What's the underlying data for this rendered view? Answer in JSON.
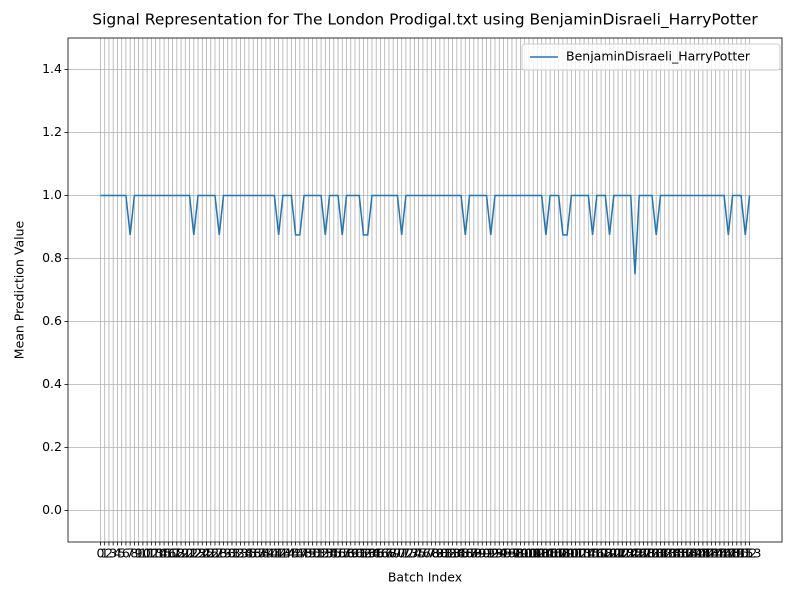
{
  "chart_data": {
    "type": "line",
    "title": "Signal Representation for The London Prodigal.txt using BenjaminDisraeli_HarryPotter",
    "x_label": "Batch Index",
    "y_label": "Mean Prediction Value",
    "x": [
      0,
      1,
      2,
      3,
      4,
      5,
      6,
      7,
      8,
      9,
      10,
      11,
      12,
      13,
      14,
      15,
      16,
      17,
      18,
      19,
      20,
      21,
      22,
      23,
      24,
      25,
      26,
      27,
      28,
      29,
      30,
      31,
      32,
      33,
      34,
      35,
      36,
      37,
      38,
      39,
      40,
      41,
      42,
      43,
      44,
      45,
      46,
      47,
      48,
      49,
      50,
      51,
      52,
      53,
      54,
      55,
      56,
      57,
      58,
      59,
      60,
      61,
      62,
      63,
      64,
      65,
      66,
      67,
      68,
      69,
      70,
      71,
      72,
      73,
      74,
      75,
      76,
      77,
      78,
      79,
      80,
      81,
      82,
      83,
      84,
      85,
      86,
      87,
      88,
      89,
      90,
      91,
      92,
      93,
      94,
      95,
      96,
      97,
      98,
      99,
      100,
      101,
      102,
      103,
      104,
      105,
      106,
      107,
      108,
      109,
      110,
      111,
      112,
      113,
      114,
      115,
      116,
      117,
      118,
      119,
      120,
      121,
      122,
      123,
      124,
      125,
      126,
      127,
      128,
      129,
      130,
      131,
      132,
      133,
      134,
      135,
      136,
      137,
      138,
      139,
      140,
      141,
      142,
      143,
      144,
      145,
      146,
      147,
      148,
      149,
      150,
      151,
      152,
      153
    ],
    "series": [
      {
        "name": "BenjaminDisraeli_HarryPotter",
        "color": "#1f77b4",
        "values": [
          1,
          1,
          1,
          1,
          1,
          1,
          1,
          0.875,
          1,
          1,
          1,
          1,
          1,
          1,
          1,
          1,
          1,
          1,
          1,
          1,
          1,
          1,
          0.875,
          1,
          1,
          1,
          1,
          1,
          0.875,
          1,
          1,
          1,
          1,
          1,
          1,
          1,
          1,
          1,
          1,
          1,
          1,
          1,
          0.875,
          1,
          1,
          1,
          0.875,
          0.875,
          1,
          1,
          1,
          1,
          1,
          0.875,
          1,
          1,
          1,
          0.875,
          1,
          1,
          1,
          1,
          0.875,
          0.875,
          1,
          1,
          1,
          1,
          1,
          1,
          1,
          0.875,
          1,
          1,
          1,
          1,
          1,
          1,
          1,
          1,
          1,
          1,
          1,
          1,
          1,
          1,
          0.875,
          1,
          1,
          1,
          1,
          1,
          0.875,
          1,
          1,
          1,
          1,
          1,
          1,
          1,
          1,
          1,
          1,
          1,
          1,
          0.875,
          1,
          1,
          1,
          0.875,
          0.875,
          1,
          1,
          1,
          1,
          1,
          0.875,
          1,
          1,
          1,
          0.875,
          1,
          1,
          1,
          1,
          1,
          0.75,
          1,
          1,
          1,
          1,
          0.875,
          1,
          1,
          1,
          1,
          1,
          1,
          1,
          1,
          1,
          1,
          1,
          1,
          1,
          1,
          1,
          1,
          0.875,
          1,
          1,
          1,
          0.875,
          1
        ]
      }
    ],
    "xlim": [
      -7.65,
      160.65
    ],
    "xticks": [
      0,
      1,
      2,
      3,
      4,
      5,
      6,
      7,
      8,
      9,
      10,
      11,
      12,
      13,
      14,
      15,
      16,
      17,
      18,
      19,
      20,
      21,
      22,
      23,
      24,
      25,
      26,
      27,
      28,
      29,
      30,
      31,
      32,
      33,
      34,
      35,
      36,
      37,
      38,
      39,
      40,
      41,
      42,
      43,
      44,
      45,
      46,
      47,
      48,
      49,
      50,
      51,
      52,
      53,
      54,
      55,
      56,
      57,
      58,
      59,
      60,
      61,
      62,
      63,
      64,
      65,
      66,
      67,
      68,
      69,
      70,
      71,
      72,
      73,
      74,
      75,
      76,
      77,
      78,
      79,
      80,
      81,
      82,
      83,
      84,
      85,
      86,
      87,
      88,
      89,
      90,
      91,
      92,
      93,
      94,
      95,
      96,
      97,
      98,
      99,
      100,
      101,
      102,
      103,
      104,
      105,
      106,
      107,
      108,
      109,
      110,
      111,
      112,
      113,
      114,
      115,
      116,
      117,
      118,
      119,
      120,
      121,
      122,
      123,
      124,
      125,
      126,
      127,
      128,
      129,
      130,
      131,
      132,
      133,
      134,
      135,
      136,
      137,
      138,
      139,
      140,
      141,
      142,
      143,
      144,
      145,
      146,
      147,
      148,
      149,
      150,
      151,
      152,
      153
    ],
    "ylim": [
      -0.1,
      1.5
    ],
    "yticks": [
      {
        "value": 0,
        "label": "0.0"
      },
      0.2,
      0.4,
      0.6,
      0.8,
      {
        "value": 1,
        "label": "1.0"
      },
      1.2,
      1.4
    ],
    "grid": true,
    "legend": "upper right"
  }
}
